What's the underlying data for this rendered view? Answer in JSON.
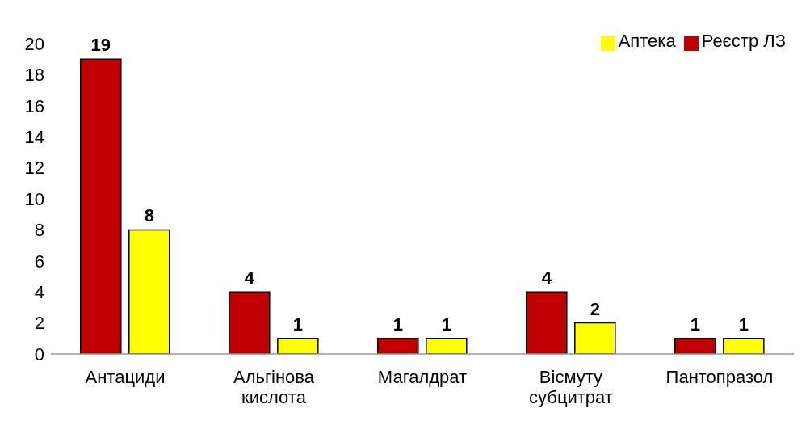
{
  "chart_data": {
    "type": "bar",
    "categories": [
      "Антациди",
      "Альгінова кислота",
      "Магалдрат",
      "Вісмуту субцитрат",
      "Пантопразол"
    ],
    "series": [
      {
        "name": "Реєстр ЛЗ",
        "color": "#c00000",
        "values": [
          19,
          4,
          1,
          4,
          1
        ]
      },
      {
        "name": "Аптека",
        "color": "#ffff00",
        "values": [
          8,
          1,
          1,
          2,
          1
        ]
      }
    ],
    "ylim": [
      0,
      20
    ],
    "yticks": [
      0,
      2,
      4,
      6,
      8,
      10,
      12,
      14,
      16,
      18,
      20
    ],
    "grid": false,
    "legend": "top right",
    "data_labels": true
  }
}
